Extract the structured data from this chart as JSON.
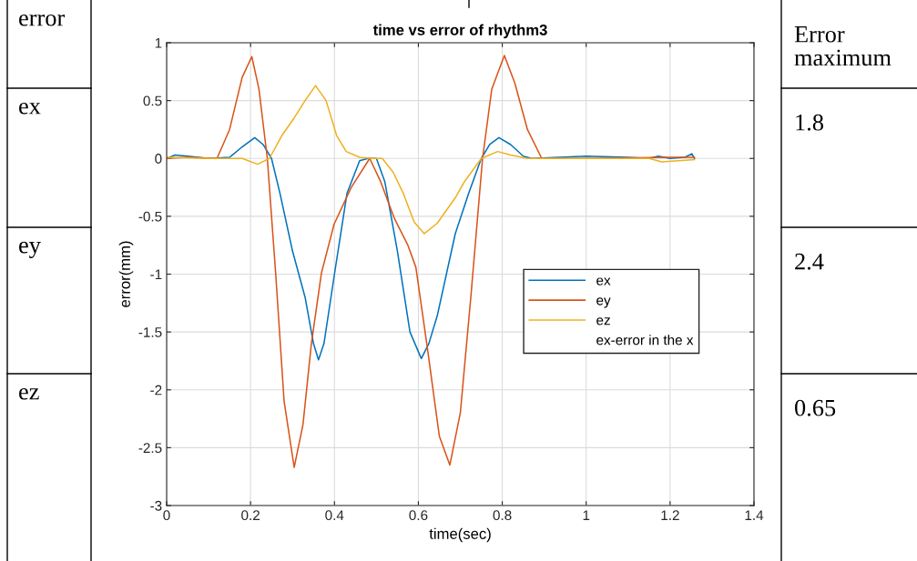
{
  "chart_data": {
    "type": "line",
    "title": "time vs error of rhythm3",
    "xlabel": "time(sec)",
    "ylabel": "error(mm)",
    "xlim": [
      0,
      1.4
    ],
    "xticks": [
      0,
      0.2,
      0.4,
      0.6,
      0.8,
      1,
      1.2,
      1.4
    ],
    "ylim": [
      -3,
      1
    ],
    "yticks": [
      -3,
      -2.5,
      -2,
      -1.5,
      -1,
      -0.5,
      0,
      0.5,
      1
    ],
    "grid": true,
    "legend": "right",
    "line_style": "solid",
    "series": [
      {
        "name": "ex",
        "color": "#0072bd",
        "x": [
          0,
          0.02,
          0.05,
          0.1,
          0.15,
          0.18,
          0.21,
          0.23,
          0.25,
          0.27,
          0.3,
          0.33,
          0.35,
          0.362,
          0.375,
          0.4,
          0.43,
          0.46,
          0.48,
          0.5,
          0.52,
          0.55,
          0.58,
          0.607,
          0.625,
          0.645,
          0.688,
          0.72,
          0.75,
          0.77,
          0.792,
          0.82,
          0.85,
          0.87,
          1.0,
          1.1,
          1.15,
          1.172,
          1.2,
          1.235,
          1.252,
          1.258
        ],
        "values": [
          0,
          0.03,
          0.02,
          0,
          0.01,
          0.1,
          0.18,
          0.12,
          0,
          -0.3,
          -0.8,
          -1.2,
          -1.6,
          -1.74,
          -1.6,
          -1.0,
          -0.3,
          -0.02,
          0,
          0,
          -0.2,
          -0.8,
          -1.5,
          -1.73,
          -1.6,
          -1.36,
          -0.65,
          -0.3,
          0,
          0.12,
          0.18,
          0.12,
          0.02,
          0,
          0.02,
          0.01,
          0,
          0.02,
          0,
          0.01,
          0.04,
          0
        ]
      },
      {
        "name": "ey",
        "color": "#d95319",
        "x": [
          0,
          0.05,
          0.12,
          0.15,
          0.18,
          0.203,
          0.22,
          0.24,
          0.26,
          0.28,
          0.304,
          0.325,
          0.345,
          0.369,
          0.399,
          0.44,
          0.484,
          0.51,
          0.543,
          0.575,
          0.594,
          0.62,
          0.65,
          0.675,
          0.7,
          0.725,
          0.753,
          0.775,
          0.805,
          0.83,
          0.86,
          0.894,
          1.0,
          1.2,
          1.258
        ],
        "values": [
          0,
          0.01,
          0,
          0.25,
          0.7,
          0.88,
          0.6,
          0,
          -1.0,
          -2.1,
          -2.67,
          -2.3,
          -1.6,
          -0.99,
          -0.57,
          -0.25,
          0,
          -0.2,
          -0.52,
          -0.75,
          -0.94,
          -1.6,
          -2.4,
          -2.65,
          -2.2,
          -1.2,
          0,
          0.6,
          0.89,
          0.65,
          0.25,
          0,
          0,
          0.01,
          0.01
        ]
      },
      {
        "name": "ez",
        "color": "#edb120",
        "x": [
          0,
          0.1,
          0.18,
          0.217,
          0.245,
          0.275,
          0.304,
          0.33,
          0.355,
          0.38,
          0.405,
          0.428,
          0.46,
          0.49,
          0.514,
          0.54,
          0.565,
          0.59,
          0.614,
          0.645,
          0.688,
          0.71,
          0.75,
          0.789,
          0.82,
          0.86,
          1.0,
          1.15,
          1.18,
          1.22,
          1.258
        ],
        "values": [
          0.01,
          0,
          0,
          -0.05,
          0,
          0.2,
          0.35,
          0.5,
          0.63,
          0.5,
          0.2,
          0.06,
          0.01,
          0,
          0,
          -0.12,
          -0.31,
          -0.55,
          -0.65,
          -0.56,
          -0.34,
          -0.2,
          0,
          0.06,
          0.03,
          0,
          0,
          0,
          -0.03,
          -0.02,
          -0.01
        ]
      }
    ],
    "annotations": [
      "ex-error in the x",
      "error",
      "ex",
      "ey",
      "ez",
      "Error\nmaximum",
      "1.8",
      "2.4",
      "0.65"
    ]
  }
}
